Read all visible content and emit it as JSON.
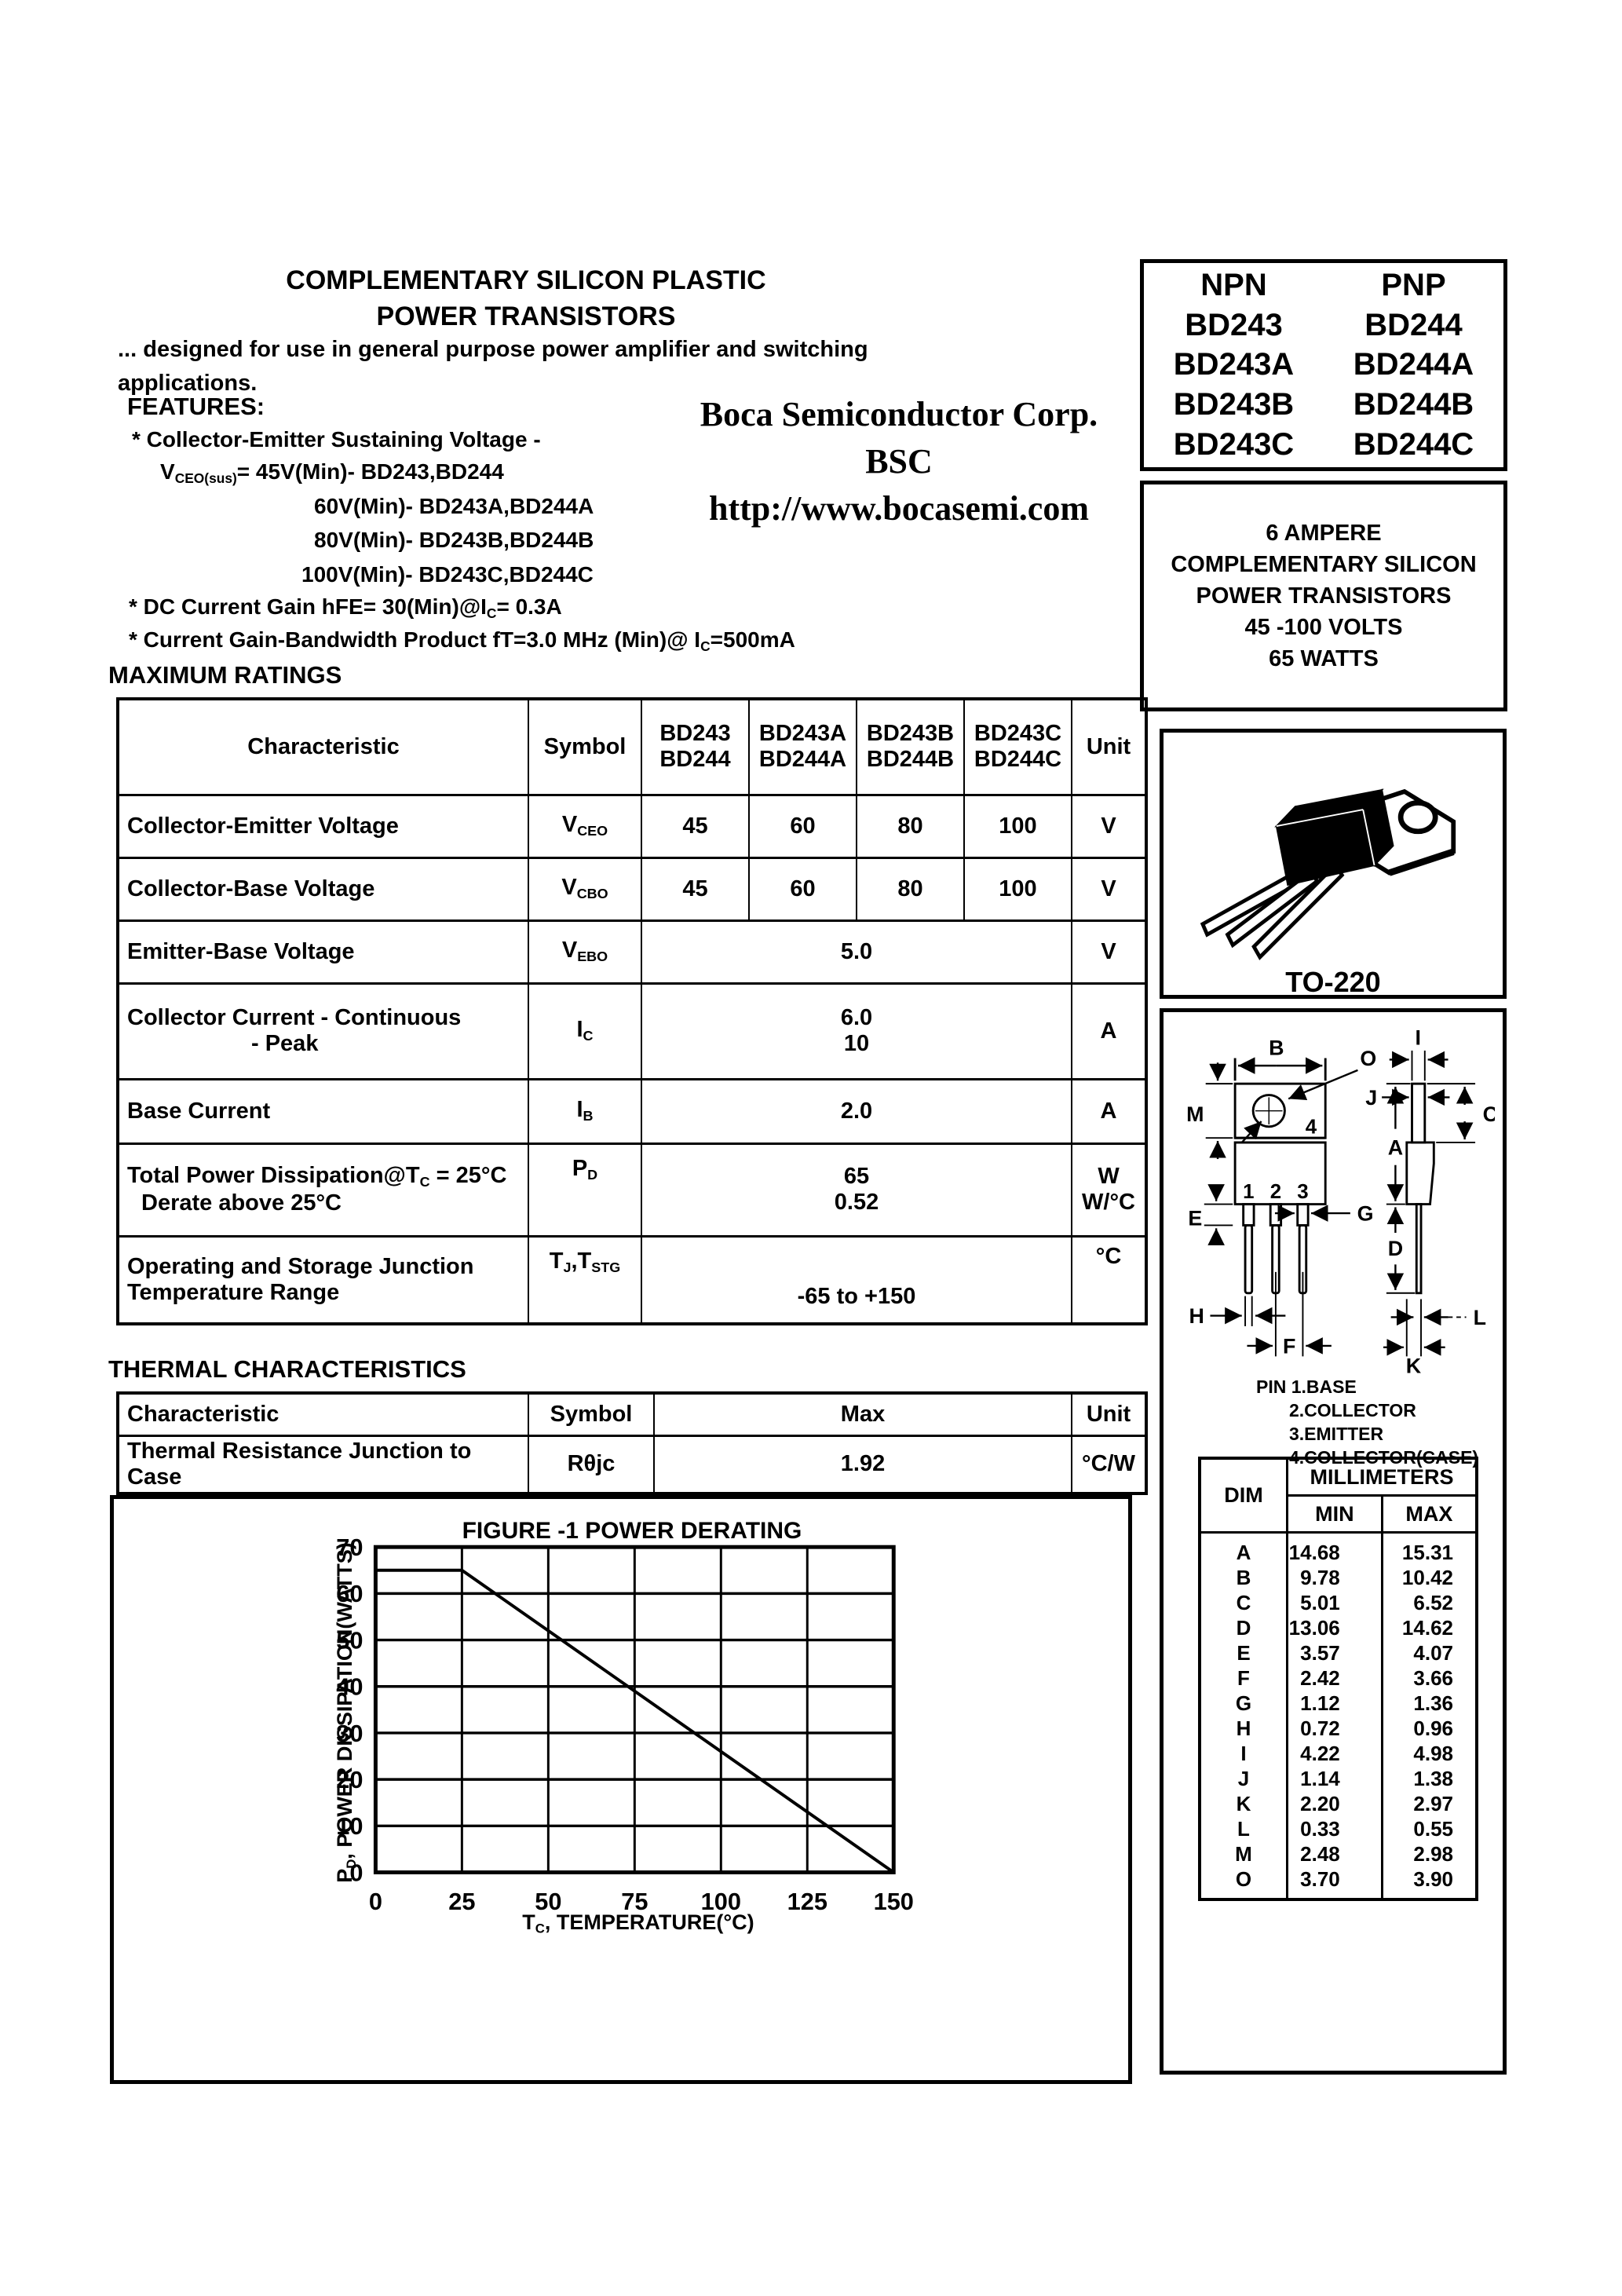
{
  "header": {
    "title_line1": "COMPLEMENTARY SILICON PLASTIC",
    "title_line2": "POWER TRANSISTORS",
    "desc_line1": "... designed for use in general  purpose  power amplifier and switching",
    "desc_line2": "applications.",
    "features_heading": "FEATURES:",
    "company_name": "Boca Semiconductor Corp.",
    "company_abbr": "BSC",
    "company_url": "http://www.bocasemi.com"
  },
  "features": {
    "b1": "* Collector-Emitter Sustaining Voltage -",
    "b1_sym_main": "V",
    "b1_sym_sub": "CEO(sus)",
    "b1_v1": "= 45V(Min)- BD243,BD244",
    "b1_v2": "60V(Min)- BD243A,BD244A",
    "b1_v3": "80V(Min)- BD243B,BD244B",
    "b1_v4": "100V(Min)- BD243C,BD244C",
    "b2_pre": "* DC Current Gain hFE= 30(Min)@I",
    "b2_sub": "C",
    "b2_post": "= 0.3A",
    "b3_pre": "* Current Gain-Bandwidth Product  fT=3.0 MHz (Min)@ I",
    "b3_sub": "C",
    "b3_post": "=500mA"
  },
  "part_table": {
    "npn_header": "NPN",
    "pnp_header": "PNP",
    "rows": [
      {
        "npn": "BD243",
        "pnp": "BD244"
      },
      {
        "npn": "BD243A",
        "pnp": "BD244A"
      },
      {
        "npn": "BD243B",
        "pnp": "BD244B"
      },
      {
        "npn": "BD243C",
        "pnp": "BD244C"
      }
    ]
  },
  "summary_box": {
    "line1": "6 AMPERE",
    "line2": "COMPLEMENTARY SILICON",
    "line3": "POWER TRANSISTORS",
    "line4": "45 -100  VOLTS",
    "line5": "65  WATTS"
  },
  "package_box": {
    "label": "TO-220"
  },
  "max_ratings": {
    "heading": "MAXIMUM RATINGS",
    "headers": {
      "characteristic": "Characteristic",
      "symbol": "Symbol",
      "g1a": "BD243",
      "g1b": "BD244",
      "g2a": "BD243A",
      "g2b": "BD244A",
      "g3a": "BD243B",
      "g3b": "BD244B",
      "g4a": "BD243C",
      "g4b": "BD244C",
      "unit": "Unit"
    },
    "r1": {
      "ch": "Collector-Emitter Voltage",
      "sym_main": "V",
      "sym_sub": "CEO",
      "v1": "45",
      "v2": "60",
      "v3": "80",
      "v4": "100",
      "unit": "V"
    },
    "r2": {
      "ch": "Collector-Base Voltage",
      "sym_main": "V",
      "sym_sub": "CBO",
      "v1": "45",
      "v2": "60",
      "v3": "80",
      "v4": "100",
      "unit": "V"
    },
    "r3": {
      "ch": "Emitter-Base Voltage",
      "sym_main": "V",
      "sym_sub": "EBO",
      "val": "5.0",
      "unit": "V"
    },
    "r4": {
      "ch_line1": "Collector Current - Continuous",
      "ch_line2": "- Peak",
      "sym_main": "I",
      "sym_sub": "C",
      "val_line1": "6.0",
      "val_line2": "10",
      "unit": "A"
    },
    "r5": {
      "ch": "Base Current",
      "sym_main": "I",
      "sym_sub": "B",
      "val": "2.0",
      "unit": "A"
    },
    "r6": {
      "ch_line1_pre": "Total Power Dissipation@T",
      "ch_line1_sub": "C",
      "ch_line1_post": " = 25°C",
      "ch_line2": "Derate above 25°C",
      "sym_main": "P",
      "sym_sub": "D",
      "val_line1": "65",
      "val_line2": "0.52",
      "unit_line1": "W",
      "unit_line2": "W/°C"
    },
    "r7": {
      "ch_line1": "Operating and Storage Junction",
      "ch_line2": "Temperature Range",
      "sym1_main": "T",
      "sym1_sub": "J",
      "sym_sep": ",",
      "sym2_main": "T",
      "sym2_sub": "STG",
      "val": "-65 to +150",
      "unit": "°C"
    }
  },
  "thermal": {
    "heading": "THERMAL CHARACTERISTICS",
    "headers": {
      "characteristic": "Characteristic",
      "symbol": "Symbol",
      "max": "Max",
      "unit": "Unit"
    },
    "row": {
      "ch": "Thermal Resistance Junction to Case",
      "sym": "Rθjc",
      "max": "1.92",
      "unit": "°C/W"
    }
  },
  "chart_data": {
    "type": "line",
    "title": "FIGURE -1 POWER DERATING",
    "xlabel_main": "T",
    "xlabel_sub": "C",
    "xlabel_rest": ", TEMPERATURE(°C)",
    "ylabel_main": "P",
    "ylabel_sub": "D",
    "ylabel_rest": ", POWER DISSIPATION(WATTS)",
    "xlim": [
      0,
      150
    ],
    "ylim": [
      0,
      70
    ],
    "x_ticks": [
      0,
      25,
      50,
      75,
      100,
      125,
      150
    ],
    "y_ticks": [
      0,
      10,
      20,
      30,
      40,
      50,
      60,
      70
    ],
    "grid": true,
    "legend": "none",
    "series": [
      {
        "name": "power-derating-limit",
        "points": [
          [
            0,
            65
          ],
          [
            25,
            65
          ],
          [
            150,
            0
          ]
        ]
      }
    ]
  },
  "outline": {
    "front_labels": {
      "B": "B",
      "O": "O",
      "M": "M",
      "E": "E",
      "G": "G",
      "H": "H",
      "F": "F",
      "p1": "1",
      "p2": "2",
      "p3": "3",
      "p4": "4"
    },
    "side_labels": {
      "I": "I",
      "J": "J",
      "C": "C",
      "A": "A",
      "D": "D",
      "K": "K",
      "L": "L"
    },
    "pin_note_line1": "PIN 1.BASE",
    "pin_note_line2": "2.COLLECTOR",
    "pin_note_line3": "3.EMITTER",
    "pin_note_line4": "4.COLLECTOR(CASE)",
    "dim_table": {
      "dim_header": "DIM",
      "unit_header": "MILLIMETERS",
      "min_header": "MIN",
      "max_header": "MAX",
      "rows": [
        {
          "dim": "A",
          "min": "14.68",
          "max": "15.31"
        },
        {
          "dim": "B",
          "min": "9.78",
          "max": "10.42"
        },
        {
          "dim": "C",
          "min": "5.01",
          "max": "6.52"
        },
        {
          "dim": "D",
          "min": "13.06",
          "max": "14.62"
        },
        {
          "dim": "E",
          "min": "3.57",
          "max": "4.07"
        },
        {
          "dim": "F",
          "min": "2.42",
          "max": "3.66"
        },
        {
          "dim": "G",
          "min": "1.12",
          "max": "1.36"
        },
        {
          "dim": "H",
          "min": "0.72",
          "max": "0.96"
        },
        {
          "dim": "I",
          "min": "4.22",
          "max": "4.98"
        },
        {
          "dim": "J",
          "min": "1.14",
          "max": "1.38"
        },
        {
          "dim": "K",
          "min": "2.20",
          "max": "2.97"
        },
        {
          "dim": "L",
          "min": "0.33",
          "max": "0.55"
        },
        {
          "dim": "M",
          "min": "2.48",
          "max": "2.98"
        },
        {
          "dim": "O",
          "min": "3.70",
          "max": "3.90"
        }
      ]
    }
  }
}
